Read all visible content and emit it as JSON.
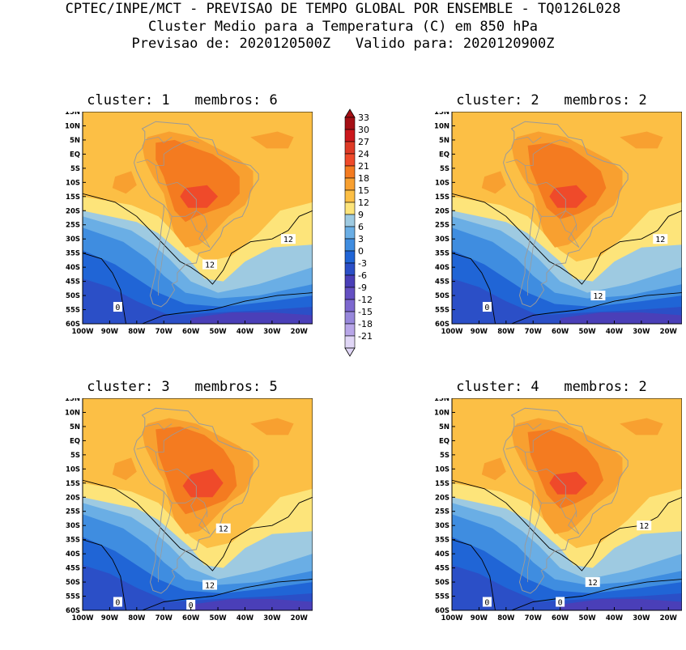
{
  "header": {
    "line1": "CPTEC/INPE/MCT - PREVISAO DE TEMPO GLOBAL POR ENSEMBLE - TQ0126L028",
    "line2": "Cluster Medio para a Temperatura (C) em 850 hPa",
    "line3": "Previsao de: 2020120500Z   Valido para: 2020120900Z"
  },
  "axes": {
    "lat_labels": [
      "15N",
      "10N",
      "5N",
      "EQ",
      "5S",
      "10S",
      "15S",
      "20S",
      "25S",
      "30S",
      "35S",
      "40S",
      "45S",
      "50S",
      "55S",
      "60S"
    ],
    "lon_labels": [
      "100W",
      "90W",
      "80W",
      "70W",
      "60W",
      "50W",
      "40W",
      "30W",
      "20W"
    ]
  },
  "colorbar": {
    "labels": [
      "33",
      "30",
      "27",
      "24",
      "21",
      "18",
      "15",
      "12",
      "9",
      "6",
      "3",
      "0",
      "-3",
      "-6",
      "-9",
      "-12",
      "-15",
      "-18",
      "-21"
    ],
    "colors": [
      "#a50f15",
      "#cb181d",
      "#de3a26",
      "#ef4a2a",
      "#f47b20",
      "#f8a030",
      "#fcbf45",
      "#fde47a",
      "#9ecae1",
      "#6aaee5",
      "#3f8de0",
      "#2065d6",
      "#2b4fc7",
      "#4a3fb8",
      "#6450c2",
      "#7d68cf",
      "#9787db",
      "#b8a6e8",
      "#e0d6f6"
    ]
  },
  "panels": [
    {
      "title": "cluster: 1   membros: 6",
      "contour_labels": [
        {
          "text": "12",
          "lon": -53,
          "lat": -39
        },
        {
          "text": "12",
          "lon": -24,
          "lat": -30
        },
        {
          "text": "0",
          "lon": -87,
          "lat": -54
        }
      ]
    },
    {
      "title": "cluster: 2   membros: 2",
      "contour_labels": [
        {
          "text": "12",
          "lon": -23,
          "lat": -30
        },
        {
          "text": "12",
          "lon": -46,
          "lat": -50
        },
        {
          "text": "0",
          "lon": -87,
          "lat": -54
        }
      ]
    },
    {
      "title": "cluster: 3   membros: 5",
      "contour_labels": [
        {
          "text": "12",
          "lon": -48,
          "lat": -31
        },
        {
          "text": "12",
          "lon": -53,
          "lat": -51
        },
        {
          "text": "0",
          "lon": -87,
          "lat": -57
        },
        {
          "text": "0",
          "lon": -60,
          "lat": -58
        }
      ]
    },
    {
      "title": "cluster: 4   membros: 2",
      "contour_labels": [
        {
          "text": "12",
          "lon": -29,
          "lat": -30
        },
        {
          "text": "12",
          "lon": -48,
          "lat": -50
        },
        {
          "text": "0",
          "lon": -87,
          "lat": -57
        },
        {
          "text": "0",
          "lon": -60,
          "lat": -57
        }
      ]
    }
  ]
}
